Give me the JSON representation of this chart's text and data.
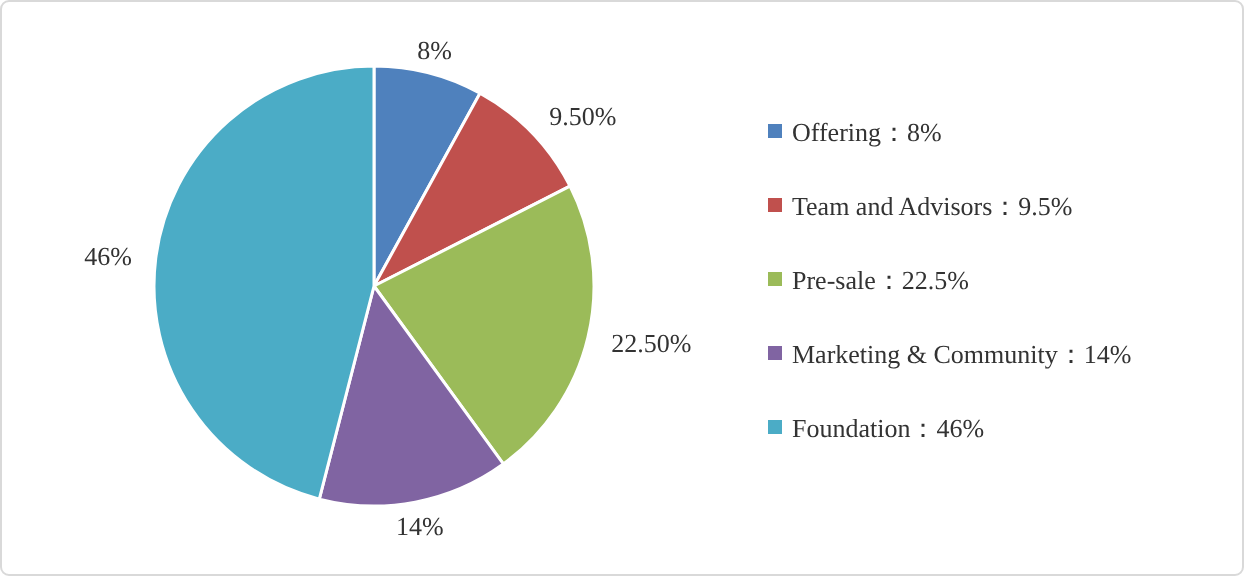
{
  "chart_data": {
    "type": "pie",
    "categories": [
      "Offering：8%",
      "Team and Advisors：9.5%",
      "Pre-sale：22.5%",
      "Marketing & Community：14%",
      "Foundation：46%"
    ],
    "values": [
      8,
      9.5,
      22.5,
      14,
      46
    ],
    "colors": [
      "#4f81bd",
      "#c0504d",
      "#9bbb59",
      "#8064a2",
      "#4bacc6"
    ],
    "value_labels": [
      "8%",
      "9.50%",
      "22.50%",
      "14%",
      "46%"
    ],
    "legend": "right"
  }
}
